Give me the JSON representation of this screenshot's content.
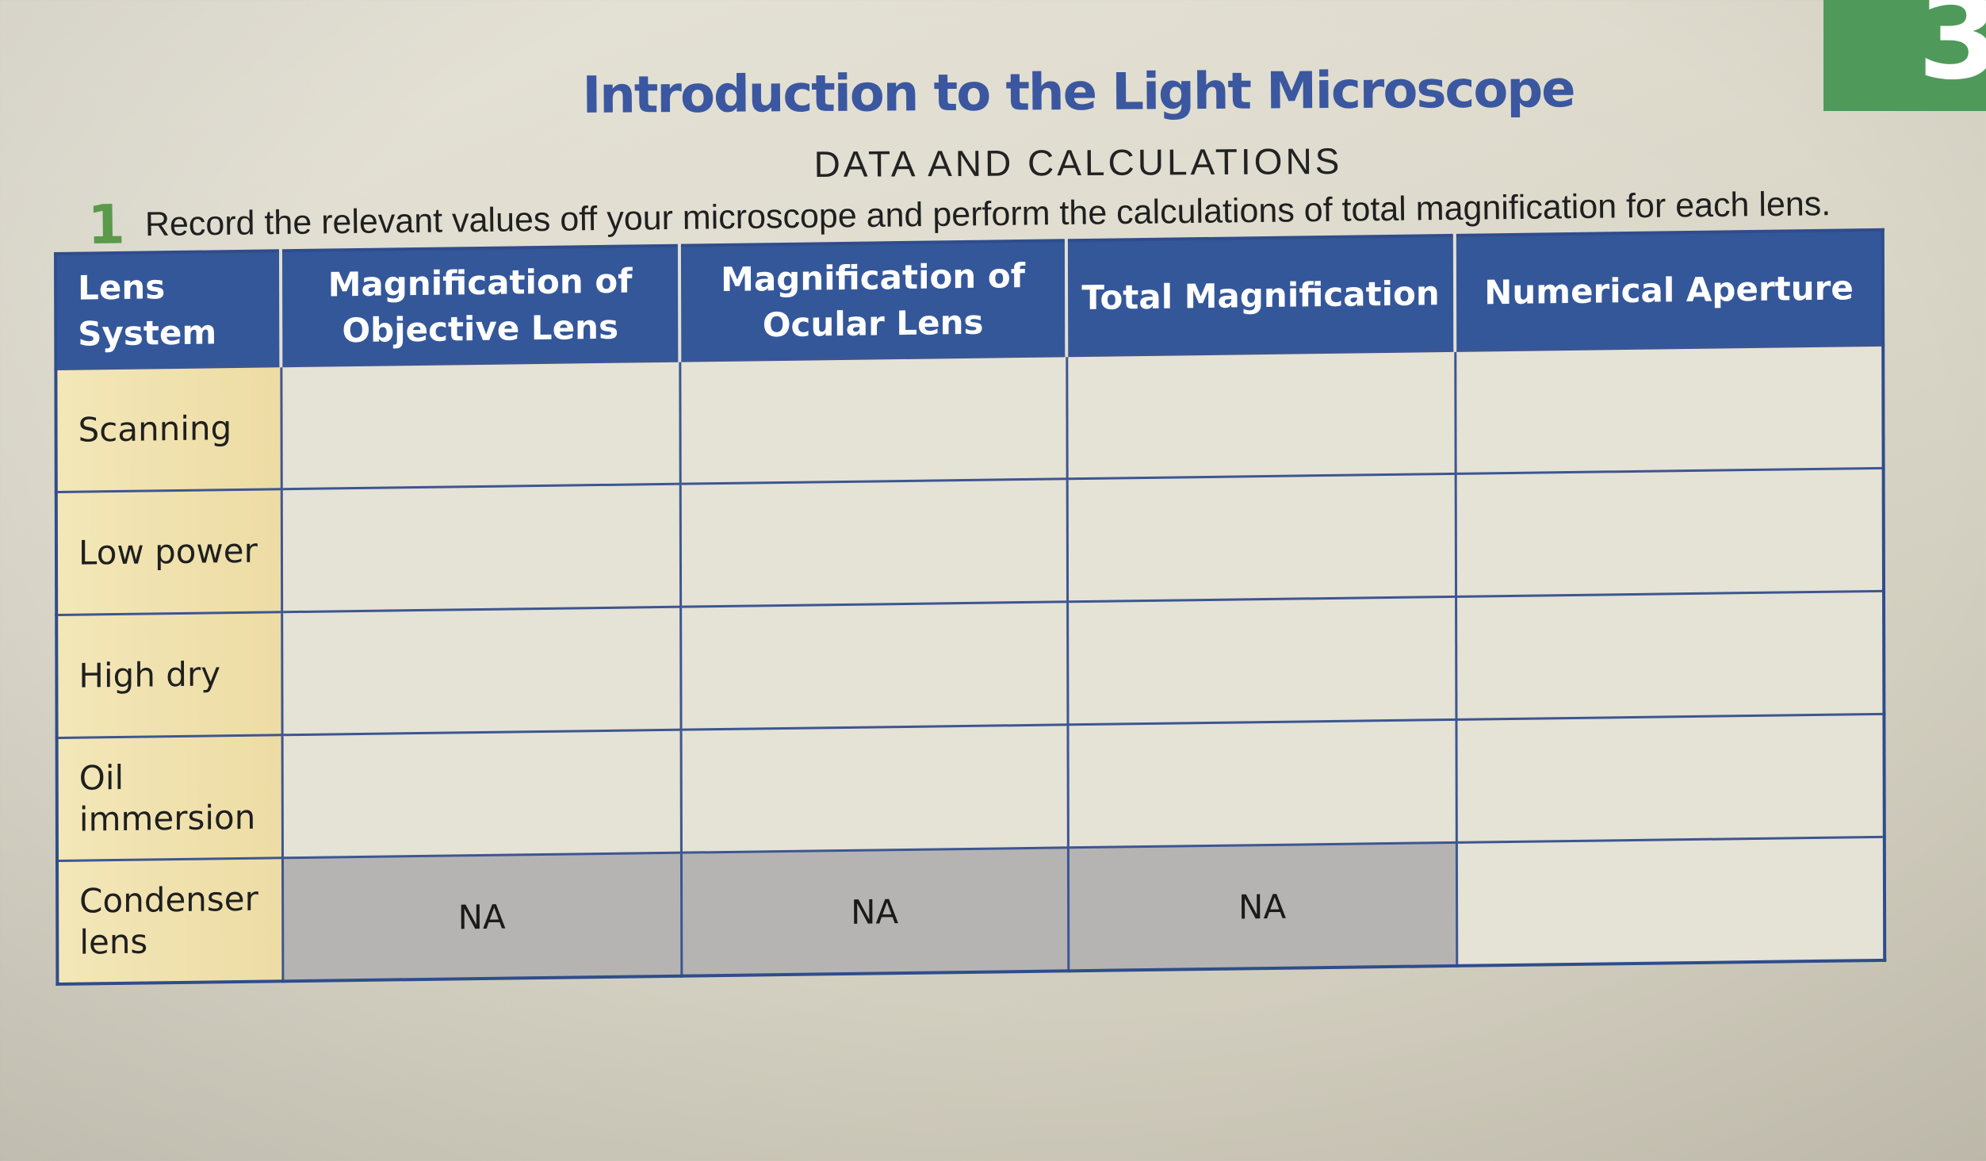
{
  "page": {
    "title": "Introduction to the Light Microscope",
    "subtitle": "DATA AND CALCULATIONS",
    "tab_number": "3",
    "instruction": {
      "number": "1",
      "text": "Record the relevant values off your microscope and perform the calculations of total magnification for each lens."
    }
  },
  "table": {
    "headers": [
      "Lens System",
      "Magnification of Objective Lens",
      "Magnification of Ocular Lens",
      "Total Magnification",
      "Numerical Aperture"
    ],
    "rows": [
      {
        "label": "Scanning",
        "cells": [
          "",
          "",
          "",
          ""
        ]
      },
      {
        "label": "Low power",
        "cells": [
          "",
          "",
          "",
          ""
        ]
      },
      {
        "label": "High dry",
        "cells": [
          "",
          "",
          "",
          ""
        ]
      },
      {
        "label": "Oil immersion",
        "cells": [
          "",
          "",
          "",
          ""
        ]
      },
      {
        "label": "Condenser lens",
        "cells": [
          "NA",
          "NA",
          "NA",
          ""
        ]
      }
    ]
  },
  "colors": {
    "title_blue": "#3b57a0",
    "header_blue": "#34579a",
    "row_label_yellow": "#f0e1ab",
    "na_gray": "#b5b4b3",
    "accent_green": "#4f9a5a"
  }
}
